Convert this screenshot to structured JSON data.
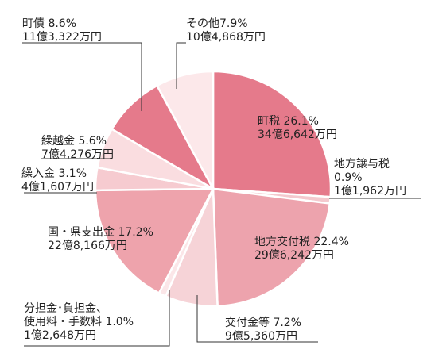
{
  "chart_data": {
    "type": "pie",
    "start_angle_deg": 0,
    "direction": "clockwise",
    "slices": [
      {
        "name": "町税",
        "percent_label": "26.1%",
        "value": 26.1,
        "amount": "34億6,642万円",
        "color": "#E57A8B"
      },
      {
        "name": "地方譲与税",
        "percent_label": "0.9%",
        "value": 0.9,
        "amount": "1億1,962万円",
        "color": "#F4C9CE"
      },
      {
        "name": "地方交付税",
        "percent_label": "22.4%",
        "value": 22.4,
        "amount": "29億6,242万円",
        "color": "#EDA3AD"
      },
      {
        "name": "交付金等",
        "percent_label": "7.2%",
        "value": 7.2,
        "amount": "9億5,360万円",
        "color": "#F6D3D7"
      },
      {
        "name": "分担金･負担金、使用料・手数料",
        "name_line1": "分担金･負担金、",
        "name_line2": "使用料・手数料",
        "percent_label": "1.0%",
        "value": 1.0,
        "amount": "1億2,648万円",
        "color": "#FBE6E8"
      },
      {
        "name": "国・県支出金",
        "percent_label": "17.2%",
        "value": 17.2,
        "amount": "22億8,166万円",
        "color": "#EEA3AC"
      },
      {
        "name": "繰入金",
        "percent_label": "3.1%",
        "value": 3.1,
        "amount": "4億1,607万円",
        "color": "#F6CBD0"
      },
      {
        "name": "繰越金",
        "percent_label": "5.6%",
        "value": 5.6,
        "amount": "7億4,276万円",
        "color": "#FADDE0"
      },
      {
        "name": "町債",
        "percent_label": "8.6%",
        "value": 8.6,
        "amount": "11億3,322万円",
        "color": "#E57A8B"
      },
      {
        "name": "その他",
        "percent_label": "7.9%",
        "value": 7.9,
        "amount": "10億4,868万円",
        "color": "#FCE8EA"
      }
    ]
  }
}
